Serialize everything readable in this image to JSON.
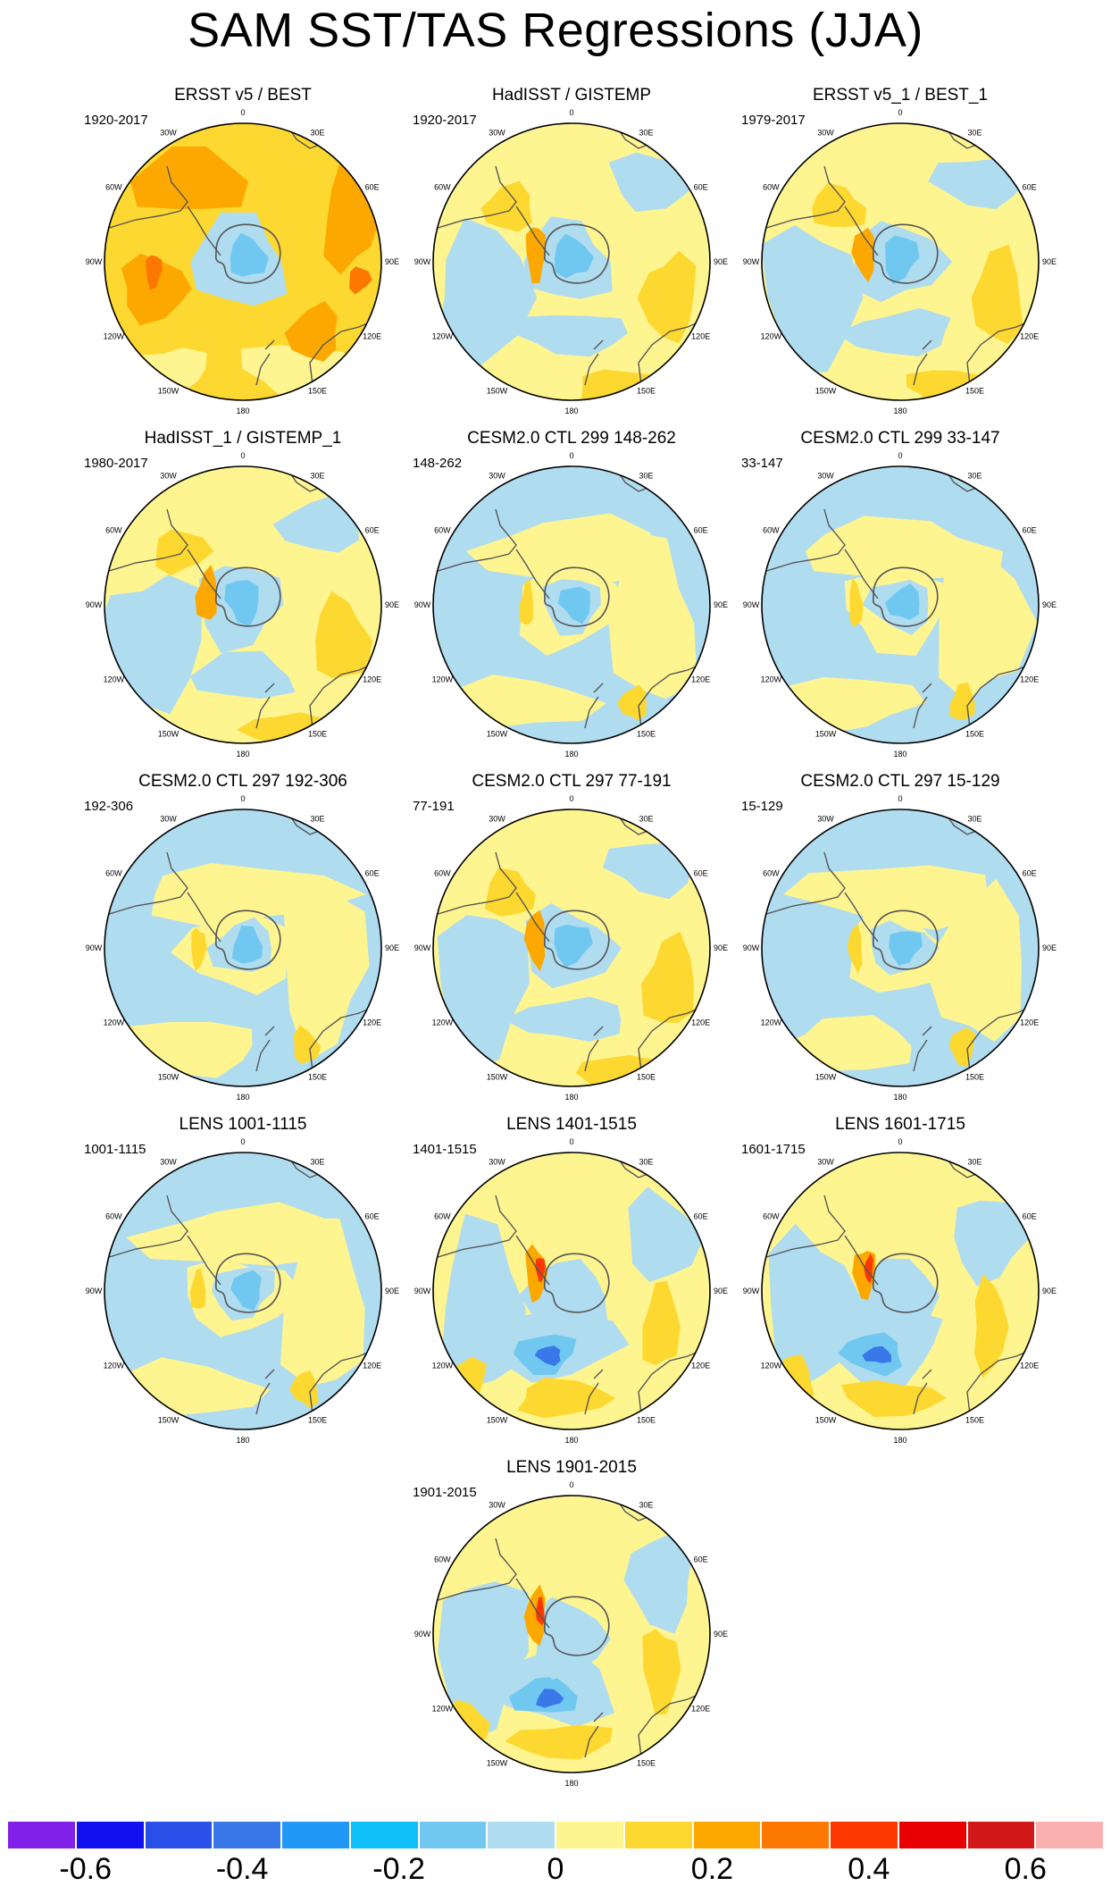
{
  "title": "SAM SST/TAS Regressions (JJA)",
  "longitude_labels": [
    "0",
    "30E",
    "60E",
    "90E",
    "120E",
    "150E",
    "180",
    "150W",
    "120W",
    "90W",
    "60W",
    "30W"
  ],
  "panels": [
    {
      "title": "ERSST v5 / BEST",
      "period": "1920-2017",
      "pattern": "warm"
    },
    {
      "title": "HadISST / GISTEMP",
      "period": "1920-2017",
      "pattern": "mixed"
    },
    {
      "title": "ERSST v5_1 / BEST_1",
      "period": "1979-2017",
      "pattern": "mixed"
    },
    {
      "title": "HadISST_1 / GISTEMP_1",
      "period": "1980-2017",
      "pattern": "mixed"
    },
    {
      "title": "CESM2.0 CTL 299 148-262",
      "period": "148-262",
      "pattern": "cool"
    },
    {
      "title": "CESM2.0 CTL 299 33-147",
      "period": "33-147",
      "pattern": "cool"
    },
    {
      "title": "CESM2.0 CTL 297 192-306",
      "period": "192-306",
      "pattern": "cool"
    },
    {
      "title": "CESM2.0 CTL 297 77-191",
      "period": "77-191",
      "pattern": "mixed"
    },
    {
      "title": "CESM2.0 CTL 297 15-129",
      "period": "15-129",
      "pattern": "cool"
    },
    {
      "title": "LENS 1001-1115",
      "period": "1001-1115",
      "pattern": "cool"
    },
    {
      "title": "LENS 1401-1515",
      "period": "1401-1515",
      "pattern": "lens"
    },
    {
      "title": "LENS 1601-1715",
      "period": "1601-1715",
      "pattern": "lens"
    },
    {
      "title": "LENS 1901-2015",
      "period": "1901-2015",
      "pattern": "lens"
    }
  ],
  "colorbar": {
    "colors": [
      "#8020e8",
      "#1010f0",
      "#2850e8",
      "#3878e8",
      "#2098f8",
      "#10c0f8",
      "#70c8f0",
      "#b0dcf0",
      "#fff590",
      "#fdd830",
      "#fca800",
      "#fc7800",
      "#fc3800",
      "#e80000",
      "#d01818",
      "#f8b0b0"
    ],
    "tick_labels": [
      "-0.6",
      "-0.4",
      "-0.2",
      "0",
      "0.2",
      "0.4",
      "0.6"
    ],
    "tick_values": [
      -0.6,
      -0.4,
      -0.2,
      0,
      0.2,
      0.4,
      0.6
    ],
    "min": -0.7,
    "max": 0.7
  },
  "chart_data": {
    "type": "heatmap",
    "title": "SAM SST/TAS Regressions (JJA)",
    "projection": "south polar stereographic",
    "legend": "bottom colorbar",
    "levels": [
      -0.7,
      -0.6,
      -0.5,
      -0.4,
      -0.3,
      -0.2,
      -0.1,
      0,
      0.1,
      0.2,
      0.3,
      0.4,
      0.5,
      0.6,
      0.7
    ],
    "colorbar_ticks": [
      -0.6,
      -0.4,
      -0.2,
      0,
      0.2,
      0.4,
      0.6
    ]
  }
}
